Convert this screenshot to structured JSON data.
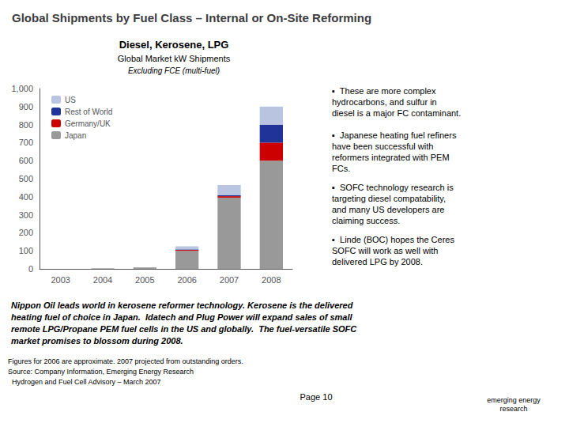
{
  "chart_data": {
    "type": "bar",
    "title": "Global Shipments by Fuel Class – Internal or On-Site Reforming",
    "subtitle": [
      "Diesel, Kerosene, LPG",
      "Global Market kW Shipments",
      "Excluding FCE (multi-fuel)"
    ],
    "categories": [
      "2003",
      "2004",
      "2005",
      "2006",
      "2007",
      "2008"
    ],
    "series": [
      {
        "name": "Japan",
        "color": "#999999",
        "values": [
          0,
          3,
          8,
          100,
          395,
          600
        ]
      },
      {
        "name": "Germany/UK",
        "color": "#cc0000",
        "values": [
          0,
          0,
          0,
          5,
          8,
          100
        ]
      },
      {
        "name": "Rest of World",
        "color": "#1f3399",
        "values": [
          0,
          0,
          0,
          3,
          5,
          100
        ]
      },
      {
        "name": "US",
        "color": "#b8c4e0",
        "values": [
          0,
          0,
          0,
          17,
          57,
          100
        ]
      }
    ],
    "stacked": true,
    "ylim": [
      0,
      1000
    ],
    "yticks": [
      0,
      100,
      200,
      300,
      400,
      500,
      600,
      700,
      800,
      900,
      1000
    ],
    "grid": false,
    "legend": "upper left",
    "bullets": [
      "▪  These are more complex\nhydrocarbons, and sulfur in\ndiesel is a major FC contaminant.",
      "▪  Japanese heating fuel refiners\nhave been successful with\nreformers integrated with PEM\nFCs.",
      "▪  SOFC technology research is\ntargeting diesel compatability,\nand many US developers are\nclaiming success.",
      "▪  Linde (BOC) hopes the Ceres\nSOFC will work as well with\ndelivered LPG by 2008."
    ],
    "note": "Nippon Oil leads world in kerosene reformer technology. Kerosene is the delivered\nheating fuel of choice in Japan.  Idatech and Plug Power will expand sales of small\nremote LPG/Propane PEM fuel cells in the US and globally.  The fuel-versatile SOFC\nmarket promises to blossom during 2008.",
    "footer": [
      "Figures for 2006 are approximate. 2007 projected from outstanding orders.",
      "Source: Company Information, Emerging Energy Research",
      "  Hydrogen and Fuel Cell Advisory – March 2007"
    ],
    "page": "Page 10",
    "logo": "emerging energy\nresearch"
  }
}
